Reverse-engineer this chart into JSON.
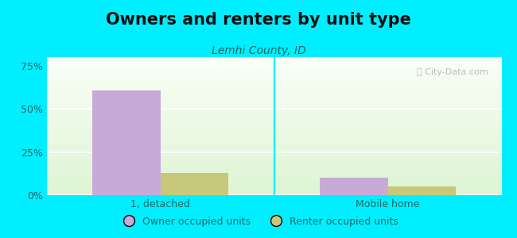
{
  "title": "Owners and renters by unit type",
  "subtitle": "Lemhi County, ID",
  "categories": [
    "1, detached",
    "Mobile home"
  ],
  "owner_values": [
    60.5,
    10.0
  ],
  "renter_values": [
    13.0,
    5.0
  ],
  "owner_color": "#c8aad8",
  "renter_color": "#c8c87a",
  "background_color": "#00eeff",
  "bar_width": 0.3,
  "ylim": [
    0,
    80
  ],
  "yticks": [
    0,
    25,
    50,
    75
  ],
  "ytick_labels": [
    "0%",
    "25%",
    "50%",
    "75%"
  ],
  "legend_labels": [
    "Owner occupied units",
    "Renter occupied units"
  ],
  "watermark": "ⓘ City-Data.com",
  "title_fontsize": 15,
  "subtitle_fontsize": 10,
  "tick_fontsize": 9,
  "legend_fontsize": 9,
  "text_color": "#1a6666",
  "title_color": "#111111"
}
